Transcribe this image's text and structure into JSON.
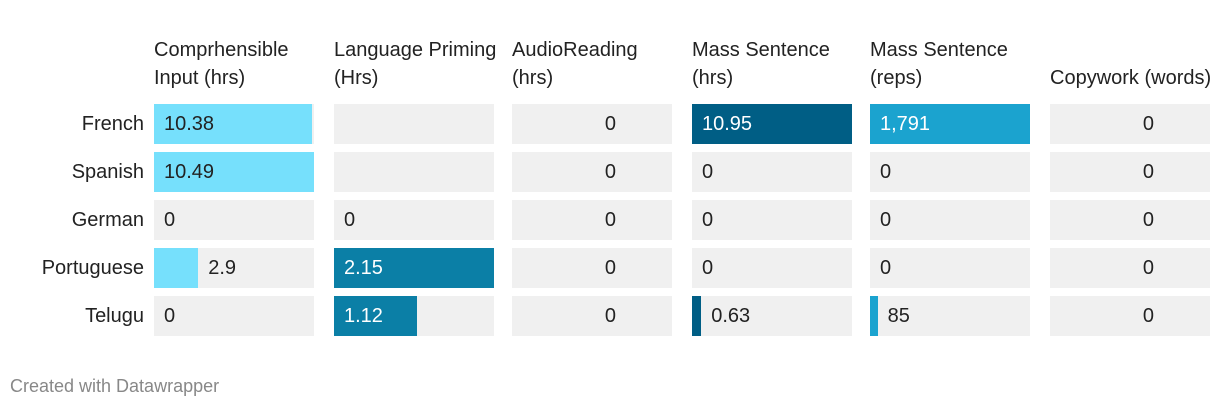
{
  "chart_data": {
    "type": "table-bars",
    "row_labels": [
      "French",
      "Spanish",
      "German",
      "Portuguese",
      "Telugu"
    ],
    "columns": [
      {
        "name": "Comprhensible Input (hrs)",
        "color": "#76e0fc",
        "values": [
          10.38,
          10.49,
          0,
          2.9,
          0
        ],
        "xlim": [
          0,
          10.49
        ]
      },
      {
        "name": "Language Priming (Hrs)",
        "color": "#0b7fa6",
        "values": [
          null,
          null,
          0,
          2.15,
          1.12
        ],
        "xlim": [
          0,
          2.15
        ]
      },
      {
        "name": "AudioReading (hrs)",
        "values": [
          0,
          0,
          0,
          0,
          0
        ]
      },
      {
        "name": "Mass Sentence (hrs)",
        "color": "#005e85",
        "values": [
          10.95,
          0,
          0,
          0,
          0.63
        ],
        "xlim": [
          0,
          10.95
        ]
      },
      {
        "name": "Mass Sentence (reps)",
        "color": "#1ba3cf",
        "values": [
          1791,
          0,
          0,
          0,
          85
        ],
        "value_labels": [
          "1,791",
          "0",
          "0",
          "0",
          "85"
        ],
        "xlim": [
          0,
          1791
        ]
      },
      {
        "name": "Copywork (words)",
        "values": [
          0,
          0,
          0,
          0,
          0
        ]
      }
    ],
    "footer": "Created with Datawrapper"
  }
}
